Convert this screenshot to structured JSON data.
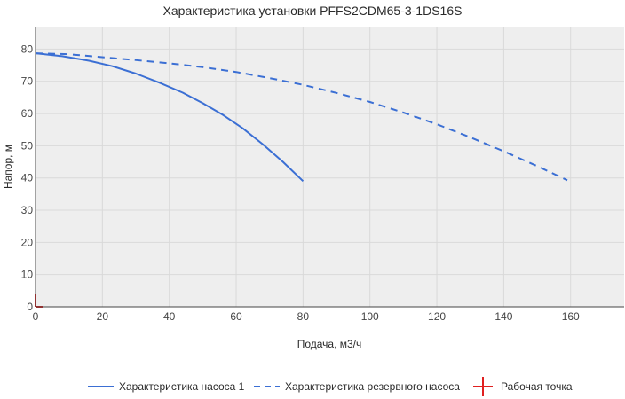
{
  "chart_data": {
    "type": "line",
    "title": "Характеристика установки PFFS2CDM65-3-1DS16S",
    "xlabel": "Подача, м3/ч",
    "ylabel": "Напор, м",
    "xlim": [
      0,
      176
    ],
    "ylim": [
      0,
      87
    ],
    "xticks": [
      0,
      20,
      40,
      60,
      80,
      100,
      120,
      140,
      160
    ],
    "yticks": [
      0,
      10,
      20,
      30,
      40,
      50,
      60,
      70,
      80
    ],
    "grid": true,
    "legend_position": "bottom",
    "colors": {
      "series": "#3b6fd4",
      "working_point": "#e02020"
    },
    "series": [
      {
        "name": "Характеристика насоса 1",
        "style": "solid",
        "x": [
          0,
          8,
          16,
          23,
          30,
          37,
          44,
          50,
          56,
          62,
          68,
          74,
          80
        ],
        "y": [
          78.7,
          77.8,
          76.4,
          74.7,
          72.4,
          69.6,
          66.5,
          63.2,
          59.6,
          55.4,
          50.4,
          45.0,
          39.0
        ]
      },
      {
        "name": "Характеристика резервного насоса",
        "style": "dashed",
        "x": [
          0,
          10,
          20,
          30,
          40,
          50,
          60,
          70,
          80,
          90,
          100,
          110,
          120,
          130,
          140,
          150,
          159
        ],
        "y": [
          78.7,
          78.4,
          77.5,
          76.6,
          75.6,
          74.4,
          72.9,
          71.0,
          68.9,
          66.4,
          63.6,
          60.3,
          56.7,
          52.6,
          48.3,
          43.7,
          39.3
        ]
      }
    ],
    "working_point": {
      "name": "Рабочая точка",
      "x": 0,
      "y": 0
    }
  }
}
